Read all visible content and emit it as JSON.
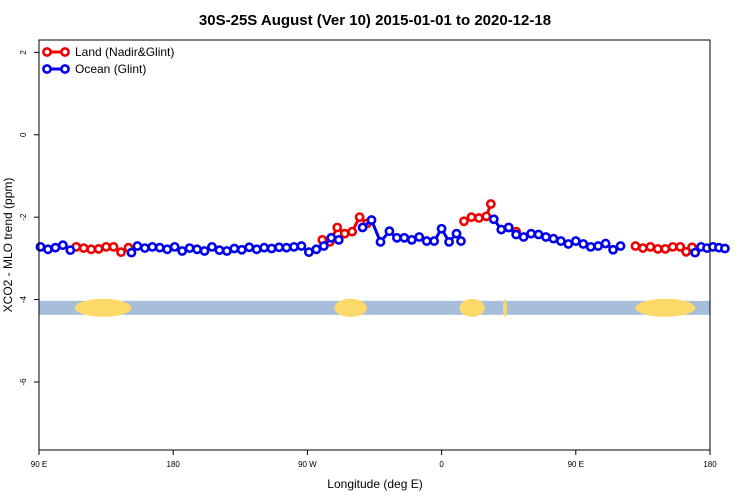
{
  "chart_data": {
    "type": "line",
    "title": "30S-25S August (Ver 10)   2015-01-01 to 2020-12-18",
    "xlabel": "Longitude (deg E)",
    "ylabel": "XCO2 - MLO trend (ppm)",
    "x_ticks": [
      {
        "value": 90,
        "label": "90 E"
      },
      {
        "value": 180,
        "label": "180"
      },
      {
        "value": 270,
        "label": "90 W"
      },
      {
        "value": 360,
        "label": "0"
      },
      {
        "value": 450,
        "label": "90 E"
      },
      {
        "value": 540,
        "label": "180"
      }
    ],
    "y_ticks": [
      {
        "value": 2,
        "label": "2"
      },
      {
        "value": 0,
        "label": "0"
      },
      {
        "value": -2,
        "label": "-2"
      },
      {
        "value": -4,
        "label": "-4"
      },
      {
        "value": -6,
        "label": "-6"
      }
    ],
    "xlim": [
      90,
      540
    ],
    "ylim": [
      -7.65,
      2.3
    ],
    "grid": false,
    "legend_position": "top-left",
    "series": [
      {
        "name": "Land (Nadir&Glint)",
        "color": "#ee0000",
        "segments": [
          [
            [
              115,
              -2.72
            ],
            [
              120,
              -2.75
            ],
            [
              125,
              -2.78
            ],
            [
              130,
              -2.77
            ],
            [
              135,
              -2.72
            ],
            [
              140,
              -2.72
            ],
            [
              145,
              -2.85
            ],
            [
              150,
              -2.74
            ]
          ],
          [
            [
              280,
              -2.55
            ],
            [
              285,
              -2.6
            ],
            [
              290,
              -2.25
            ],
            [
              295,
              -2.4
            ],
            [
              300,
              -2.35
            ],
            [
              305,
              -2.0
            ],
            [
              310,
              -2.15
            ]
          ],
          [
            [
              375,
              -2.1
            ],
            [
              380,
              -2.0
            ],
            [
              385,
              -2.02
            ],
            [
              390,
              -1.98
            ],
            [
              393,
              -1.68
            ]
          ],
          [
            [
              405,
              -2.25
            ],
            [
              410,
              -2.35
            ]
          ],
          [
            [
              490,
              -2.7
            ],
            [
              495,
              -2.75
            ],
            [
              500,
              -2.72
            ],
            [
              505,
              -2.77
            ],
            [
              510,
              -2.77
            ],
            [
              515,
              -2.72
            ],
            [
              520,
              -2.72
            ],
            [
              524,
              -2.84
            ],
            [
              528,
              -2.73
            ]
          ]
        ]
      },
      {
        "name": "Ocean (Glint)",
        "color": "#0000ee",
        "segments": [
          [
            [
              91,
              -2.72
            ],
            [
              96,
              -2.78
            ],
            [
              101,
              -2.74
            ],
            [
              106,
              -2.68
            ],
            [
              111,
              -2.8
            ]
          ],
          [
            [
              152,
              -2.86
            ],
            [
              156,
              -2.7
            ],
            [
              161,
              -2.75
            ],
            [
              166,
              -2.72
            ],
            [
              171,
              -2.74
            ],
            [
              176,
              -2.78
            ],
            [
              181,
              -2.72
            ],
            [
              186,
              -2.82
            ],
            [
              191,
              -2.75
            ],
            [
              196,
              -2.78
            ],
            [
              201,
              -2.82
            ],
            [
              206,
              -2.72
            ],
            [
              211,
              -2.8
            ],
            [
              216,
              -2.82
            ],
            [
              221,
              -2.76
            ],
            [
              226,
              -2.79
            ],
            [
              231,
              -2.73
            ],
            [
              236,
              -2.78
            ],
            [
              241,
              -2.74
            ],
            [
              246,
              -2.76
            ],
            [
              251,
              -2.73
            ],
            [
              256,
              -2.74
            ],
            [
              261,
              -2.72
            ],
            [
              266,
              -2.7
            ],
            [
              271,
              -2.85
            ],
            [
              276,
              -2.78
            ],
            [
              281,
              -2.7
            ],
            [
              286,
              -2.5
            ],
            [
              291,
              -2.55
            ]
          ],
          [
            [
              307,
              -2.25
            ],
            [
              313,
              -2.07
            ],
            [
              319,
              -2.6
            ],
            [
              325,
              -2.34
            ],
            [
              330,
              -2.5
            ],
            [
              335,
              -2.5
            ],
            [
              340,
              -2.55
            ],
            [
              345,
              -2.48
            ],
            [
              350,
              -2.58
            ],
            [
              355,
              -2.58
            ],
            [
              360,
              -2.28
            ],
            [
              365,
              -2.6
            ],
            [
              370,
              -2.4
            ],
            [
              373,
              -2.58
            ]
          ],
          [
            [
              395,
              -2.05
            ],
            [
              400,
              -2.3
            ],
            [
              405,
              -2.25
            ],
            [
              410,
              -2.42
            ],
            [
              415,
              -2.48
            ],
            [
              420,
              -2.4
            ],
            [
              425,
              -2.42
            ],
            [
              430,
              -2.48
            ],
            [
              435,
              -2.52
            ],
            [
              440,
              -2.58
            ],
            [
              445,
              -2.65
            ],
            [
              450,
              -2.58
            ],
            [
              455,
              -2.65
            ],
            [
              460,
              -2.72
            ],
            [
              465,
              -2.7
            ],
            [
              470,
              -2.64
            ],
            [
              475,
              -2.79
            ],
            [
              480,
              -2.7
            ]
          ],
          [
            [
              530,
              -2.86
            ],
            [
              534,
              -2.72
            ],
            [
              538,
              -2.75
            ],
            [
              542,
              -2.72
            ],
            [
              546,
              -2.74
            ],
            [
              550,
              -2.76
            ]
          ]
        ]
      }
    ],
    "surface_strip": {
      "y": -4.2,
      "ocean_color": "#a6bddb",
      "land_color": "#fdd96a",
      "land_ranges": [
        [
          114,
          152
        ],
        [
          288,
          310
        ],
        [
          372,
          389
        ],
        [
          402,
          403
        ],
        [
          490,
          530
        ]
      ]
    }
  }
}
